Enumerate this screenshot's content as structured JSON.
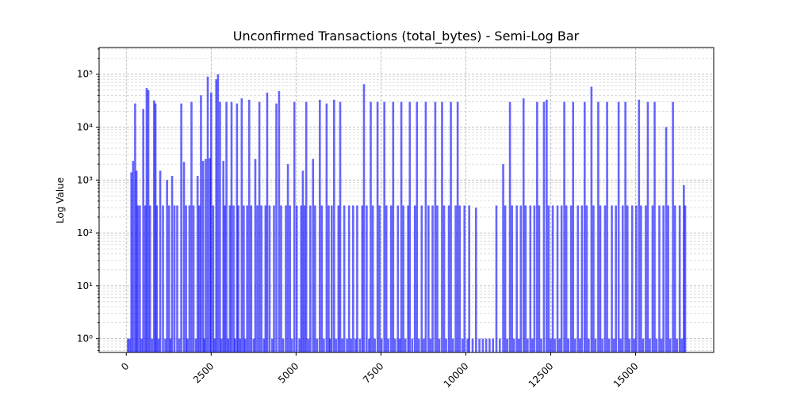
{
  "chart_data": {
    "type": "bar",
    "title": "Unconfirmed Transactions (total_bytes) - Semi-Log Bar",
    "xlabel": "",
    "ylabel": "Log Value",
    "yscale": "log",
    "xlim": [
      -800,
      17300
    ],
    "ylim": [
      0.55,
      320000
    ],
    "x_ticks": [
      0,
      2500,
      5000,
      7500,
      10000,
      12500,
      15000
    ],
    "x_tick_labels": [
      "0",
      "2500",
      "5000",
      "7500",
      "10000",
      "12500",
      "15000"
    ],
    "x_tick_rotation": 45,
    "y_ticks": [
      1,
      10,
      100,
      1000,
      10000,
      100000
    ],
    "y_tick_labels": [
      "10⁰",
      "10¹",
      "10²",
      "10³",
      "10⁴",
      "10⁵"
    ],
    "grid": true,
    "bar_color": "#0000ff",
    "bar_opacity": 0.6,
    "series": [
      {
        "values": [
          [
            50,
            1
          ],
          [
            100,
            1
          ],
          [
            150,
            1400
          ],
          [
            200,
            2300
          ],
          [
            260,
            28000
          ],
          [
            300,
            1500
          ],
          [
            340,
            330
          ],
          [
            400,
            330
          ],
          [
            450,
            1
          ],
          [
            500,
            22000
          ],
          [
            560,
            330
          ],
          [
            600,
            55000
          ],
          [
            650,
            50000
          ],
          [
            700,
            330
          ],
          [
            760,
            1
          ],
          [
            820,
            32000
          ],
          [
            860,
            28000
          ],
          [
            900,
            330
          ],
          [
            950,
            1
          ],
          [
            1000,
            1500
          ],
          [
            1080,
            330
          ],
          [
            1150,
            1
          ],
          [
            1200,
            1000
          ],
          [
            1260,
            330
          ],
          [
            1300,
            1
          ],
          [
            1350,
            1200
          ],
          [
            1420,
            330
          ],
          [
            1500,
            330
          ],
          [
            1560,
            1
          ],
          [
            1620,
            28000
          ],
          [
            1700,
            2200
          ],
          [
            1760,
            330
          ],
          [
            1800,
            1
          ],
          [
            1860,
            330
          ],
          [
            1920,
            30000
          ],
          [
            1980,
            330
          ],
          [
            2050,
            1
          ],
          [
            2100,
            1200
          ],
          [
            2150,
            330
          ],
          [
            2200,
            40000
          ],
          [
            2260,
            2300
          ],
          [
            2300,
            1
          ],
          [
            2340,
            2500
          ],
          [
            2400,
            90000
          ],
          [
            2460,
            2600
          ],
          [
            2500,
            45000
          ],
          [
            2560,
            330
          ],
          [
            2600,
            1
          ],
          [
            2650,
            80000
          ],
          [
            2700,
            100000
          ],
          [
            2760,
            30000
          ],
          [
            2800,
            1
          ],
          [
            2860,
            2300
          ],
          [
            2900,
            330
          ],
          [
            2950,
            30000
          ],
          [
            3000,
            1
          ],
          [
            3050,
            330
          ],
          [
            3100,
            30000
          ],
          [
            3160,
            330
          ],
          [
            3200,
            1
          ],
          [
            3260,
            28000
          ],
          [
            3300,
            330
          ],
          [
            3350,
            1
          ],
          [
            3400,
            35000
          ],
          [
            3460,
            330
          ],
          [
            3500,
            1
          ],
          [
            3560,
            330
          ],
          [
            3620,
            33000
          ],
          [
            3680,
            330
          ],
          [
            3750,
            1
          ],
          [
            3800,
            2500
          ],
          [
            3860,
            330
          ],
          [
            3920,
            30000
          ],
          [
            3980,
            330
          ],
          [
            4050,
            1
          ],
          [
            4100,
            330
          ],
          [
            4150,
            45000
          ],
          [
            4220,
            330
          ],
          [
            4300,
            1
          ],
          [
            4350,
            330
          ],
          [
            4420,
            28000
          ],
          [
            4500,
            48000
          ],
          [
            4560,
            330
          ],
          [
            4620,
            1
          ],
          [
            4700,
            330
          ],
          [
            4760,
            2000
          ],
          [
            4820,
            330
          ],
          [
            4880,
            1
          ],
          [
            4950,
            30000
          ],
          [
            5020,
            330
          ],
          [
            5100,
            1
          ],
          [
            5150,
            330
          ],
          [
            5200,
            1500
          ],
          [
            5250,
            330
          ],
          [
            5300,
            30000
          ],
          [
            5360,
            1
          ],
          [
            5420,
            330
          ],
          [
            5500,
            2500
          ],
          [
            5560,
            330
          ],
          [
            5620,
            1
          ],
          [
            5700,
            33000
          ],
          [
            5760,
            330
          ],
          [
            5820,
            1
          ],
          [
            5900,
            28000
          ],
          [
            5960,
            330
          ],
          [
            6000,
            1
          ],
          [
            6050,
            330
          ],
          [
            6120,
            33000
          ],
          [
            6180,
            1
          ],
          [
            6250,
            330
          ],
          [
            6300,
            30000
          ],
          [
            6360,
            1
          ],
          [
            6420,
            330
          ],
          [
            6500,
            1
          ],
          [
            6560,
            330
          ],
          [
            6620,
            1
          ],
          [
            6680,
            330
          ],
          [
            6750,
            1
          ],
          [
            6800,
            330
          ],
          [
            6880,
            1
          ],
          [
            6950,
            330
          ],
          [
            7000,
            65000
          ],
          [
            7080,
            330
          ],
          [
            7150,
            1
          ],
          [
            7200,
            30000
          ],
          [
            7260,
            330
          ],
          [
            7320,
            1
          ],
          [
            7400,
            30000
          ],
          [
            7460,
            330
          ],
          [
            7520,
            1
          ],
          [
            7600,
            30000
          ],
          [
            7660,
            330
          ],
          [
            7720,
            1
          ],
          [
            7800,
            330
          ],
          [
            7860,
            30000
          ],
          [
            7920,
            1
          ],
          [
            8000,
            330
          ],
          [
            8050,
            1
          ],
          [
            8100,
            30000
          ],
          [
            8160,
            330
          ],
          [
            8220,
            1
          ],
          [
            8300,
            330
          ],
          [
            8350,
            30000
          ],
          [
            8420,
            1
          ],
          [
            8500,
            330
          ],
          [
            8560,
            30000
          ],
          [
            8620,
            1
          ],
          [
            8700,
            330
          ],
          [
            8760,
            1
          ],
          [
            8820,
            30000
          ],
          [
            8900,
            330
          ],
          [
            8960,
            1
          ],
          [
            9020,
            330
          ],
          [
            9100,
            30000
          ],
          [
            9160,
            330
          ],
          [
            9220,
            1
          ],
          [
            9300,
            30000
          ],
          [
            9360,
            330
          ],
          [
            9420,
            1
          ],
          [
            9500,
            330
          ],
          [
            9560,
            30000
          ],
          [
            9620,
            1
          ],
          [
            9700,
            330
          ],
          [
            9760,
            30000
          ],
          [
            9820,
            330
          ],
          [
            9900,
            1
          ],
          [
            9960,
            330
          ],
          [
            10050,
            1
          ],
          [
            10100,
            330
          ],
          [
            10200,
            1
          ],
          [
            10300,
            300
          ],
          [
            10400,
            1
          ],
          [
            10500,
            1
          ],
          [
            10600,
            1
          ],
          [
            10700,
            1
          ],
          [
            10800,
            1
          ],
          [
            10900,
            330
          ],
          [
            11000,
            1
          ],
          [
            11100,
            2000
          ],
          [
            11160,
            330
          ],
          [
            11220,
            1
          ],
          [
            11300,
            30000
          ],
          [
            11360,
            330
          ],
          [
            11420,
            1
          ],
          [
            11500,
            330
          ],
          [
            11560,
            1
          ],
          [
            11620,
            330
          ],
          [
            11700,
            35000
          ],
          [
            11760,
            330
          ],
          [
            11820,
            1
          ],
          [
            11900,
            330
          ],
          [
            11960,
            1
          ],
          [
            12020,
            330
          ],
          [
            12100,
            30000
          ],
          [
            12160,
            330
          ],
          [
            12220,
            1
          ],
          [
            12300,
            30000
          ],
          [
            12380,
            33000
          ],
          [
            12440,
            330
          ],
          [
            12500,
            1
          ],
          [
            12560,
            330
          ],
          [
            12620,
            1
          ],
          [
            12700,
            330
          ],
          [
            12760,
            1
          ],
          [
            12820,
            330
          ],
          [
            12900,
            30000
          ],
          [
            12960,
            330
          ],
          [
            13020,
            1
          ],
          [
            13100,
            330
          ],
          [
            13160,
            30000
          ],
          [
            13220,
            1
          ],
          [
            13300,
            330
          ],
          [
            13360,
            1
          ],
          [
            13420,
            330
          ],
          [
            13500,
            30000
          ],
          [
            13560,
            330
          ],
          [
            13620,
            1
          ],
          [
            13700,
            58000
          ],
          [
            13760,
            330
          ],
          [
            13820,
            1
          ],
          [
            13900,
            30000
          ],
          [
            13960,
            330
          ],
          [
            14020,
            1
          ],
          [
            14100,
            330
          ],
          [
            14160,
            30000
          ],
          [
            14220,
            1
          ],
          [
            14300,
            330
          ],
          [
            14360,
            1
          ],
          [
            14420,
            330
          ],
          [
            14500,
            30000
          ],
          [
            14560,
            1
          ],
          [
            14620,
            330
          ],
          [
            14700,
            30000
          ],
          [
            14760,
            330
          ],
          [
            14820,
            1
          ],
          [
            14900,
            330
          ],
          [
            14960,
            1
          ],
          [
            15020,
            330
          ],
          [
            15100,
            33000
          ],
          [
            15160,
            330
          ],
          [
            15220,
            1
          ],
          [
            15300,
            330
          ],
          [
            15360,
            30000
          ],
          [
            15420,
            1
          ],
          [
            15500,
            330
          ],
          [
            15560,
            30000
          ],
          [
            15620,
            1
          ],
          [
            15700,
            330
          ],
          [
            15760,
            1
          ],
          [
            15820,
            330
          ],
          [
            15900,
            10000
          ],
          [
            15960,
            330
          ],
          [
            16020,
            1
          ],
          [
            16100,
            30000
          ],
          [
            16160,
            330
          ],
          [
            16220,
            1
          ],
          [
            16300,
            330
          ],
          [
            16360,
            1
          ],
          [
            16420,
            800
          ],
          [
            16460,
            330
          ]
        ]
      }
    ]
  }
}
